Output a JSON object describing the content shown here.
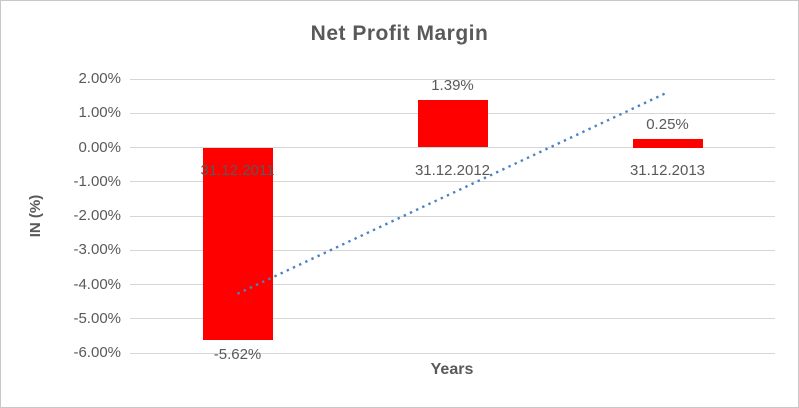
{
  "window": {
    "background": "#FFFFFF",
    "border_color": "#C8C8C8"
  },
  "chart_data": {
    "type": "bar",
    "title": "Net Profit Margin",
    "xlabel": "Years",
    "ylabel": "IN (%)",
    "categories": [
      "31.12.2011",
      "31.12.2012",
      "31.12.2013"
    ],
    "values": [
      -5.62,
      1.39,
      0.25
    ],
    "data_labels": [
      "-5.62%",
      "1.39%",
      "0.25%"
    ],
    "ylim": [
      -6,
      2
    ],
    "ytick_step": 1,
    "ytick_labels": [
      "2.00%",
      "1.00%",
      "0.00%",
      "-1.00%",
      "-2.00%",
      "-3.00%",
      "-4.00%",
      "-5.00%",
      "-6.00%"
    ],
    "grid": true,
    "legend": false,
    "bar_color": "#FF0000",
    "text_color": "#595959",
    "gridline_color": "#D6D6D6",
    "trendline": {
      "type": "linear",
      "style": "dotted",
      "color": "#4A82C4",
      "start": {
        "category_index": 0,
        "value": -4.27
      },
      "end": {
        "category_index": 2,
        "value": 1.61
      }
    }
  }
}
